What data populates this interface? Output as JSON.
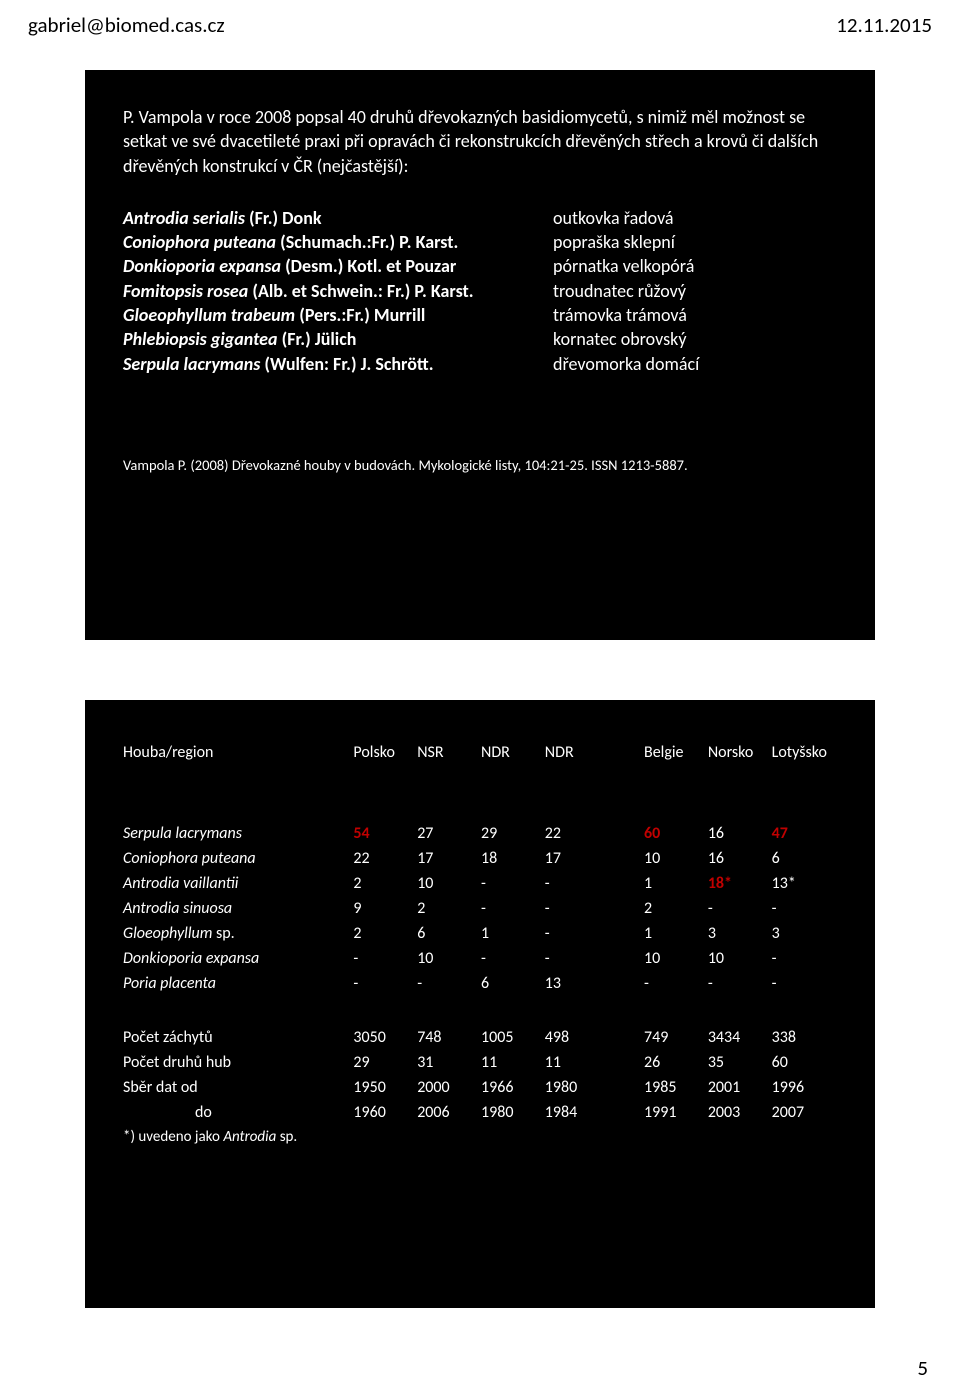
{
  "header": {
    "left": "gabriel@biomed.cas.cz",
    "right": "12.11.2015"
  },
  "slide1": {
    "intro": "P. Vampola v roce 2008 popsal 40 druhů dřevokazných basidiomycetů, s nimiž měl možnost se setkat ve své dvacetileté praxi při opravách či rekonstrukcích dřevěných střech a krovů či dalších dřevěných konstrukcí v ČR (nejčastější):",
    "species": [
      {
        "name": "Antrodia serialis",
        "auth": " (Fr.) Donk",
        "cz": "outkovka řadová"
      },
      {
        "name": "Coniophora puteana",
        "auth": " (Schumach.:Fr.) P. Karst.",
        "cz": "popraška sklepní"
      },
      {
        "name": "Donkioporia expansa",
        "auth": " (Desm.) Kotl. et Pouzar",
        "cz": "pórnatka velkopórá"
      },
      {
        "name": "Fomitopsis rosea",
        "auth": " (Alb. et Schwein.: Fr.) P. Karst.",
        "cz": "troudnatec růžový"
      },
      {
        "name": "Gloeophyllum trabeum",
        "auth": " (Pers.:Fr.) Murrill",
        "cz": "trámovka trámová"
      },
      {
        "name": "Phlebiopsis gigantea",
        "auth": " (Fr.) Jülich",
        "cz": "kornatec obrovský"
      },
      {
        "name": "Serpula lacrymans",
        "auth": " (Wulfen: Fr.) J. Schrött.",
        "cz": "dřevomorka domácí"
      }
    ],
    "citation": "Vampola P. (2008) Dřevokazné houby v budovách. Mykologické listy, 104:21-25. ISSN 1213-5887."
  },
  "slide2": {
    "headers": [
      "Houba/region",
      "Polsko",
      "NSR",
      "NDR",
      "NDR",
      "",
      "Belgie",
      "Norsko",
      "Lotyšsko"
    ],
    "rows": [
      {
        "sp": "Serpula lacrymans",
        "v": [
          "54",
          "27",
          "29",
          "22",
          "",
          "60",
          "16",
          "47"
        ],
        "red": [
          0,
          5,
          7
        ]
      },
      {
        "sp": "Coniophora puteana",
        "v": [
          "22",
          "17",
          "18",
          "17",
          "",
          "10",
          "16",
          "6"
        ],
        "red": []
      },
      {
        "sp": "Antrodia vaillantii",
        "v": [
          "2",
          "10",
          "-",
          "-",
          "",
          "1",
          "18*",
          "13*"
        ],
        "red": [
          6
        ]
      },
      {
        "sp": "Antrodia sinuosa",
        "v": [
          "9",
          "2",
          "-",
          "-",
          "",
          "2",
          "-",
          "-"
        ],
        "red": []
      },
      {
        "sp": "Gloeophyllum",
        "sp_suffix": " sp.",
        "v": [
          "2",
          "6",
          "1",
          "-",
          "",
          "1",
          "3",
          "3"
        ],
        "red": []
      },
      {
        "sp": "Donkioporia expansa",
        "v": [
          "-",
          "10",
          "-",
          "-",
          "",
          "10",
          "10",
          "-"
        ],
        "red": []
      },
      {
        "sp": "Poria placenta",
        "v": [
          "-",
          "-",
          "6",
          "13",
          "",
          "-",
          "-",
          "-"
        ],
        "red": []
      }
    ],
    "stats": [
      {
        "label": "Počet záchytů",
        "v": [
          "3050",
          "748",
          "1005",
          "498",
          "",
          "749",
          "3434",
          "338"
        ]
      },
      {
        "label": "Počet druhů hub",
        "v": [
          "29",
          "31",
          "11",
          "11",
          "",
          "26",
          "35",
          "60"
        ]
      },
      {
        "label": "Sběr dat od",
        "v": [
          "1950",
          "2000",
          "1966",
          "1980",
          "",
          "1985",
          "2001",
          "1996"
        ]
      },
      {
        "label": "do",
        "indent": true,
        "v": [
          "1960",
          "2006",
          "1980",
          "1984",
          "",
          "1991",
          "2003",
          "2007"
        ]
      }
    ],
    "footnote_pre": "*) uvedeno jako ",
    "footnote_it": "Antrodia",
    "footnote_post": " sp."
  },
  "pagenum": "5"
}
